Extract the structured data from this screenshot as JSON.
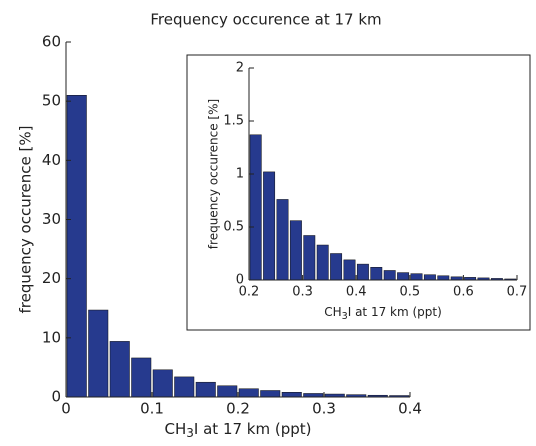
{
  "chart_data": [
    {
      "type": "histogram",
      "title": "Frequency occurence at 17 km",
      "xlabel": [
        "CH",
        "3",
        "I at 17 km (ppt)"
      ],
      "ylabel": "frequency occurence [%]",
      "bins": [
        0,
        0.025,
        0.05,
        0.075,
        0.1,
        0.125,
        0.15,
        0.175,
        0.2,
        0.225,
        0.25,
        0.275,
        0.3,
        0.325,
        0.35,
        0.375,
        0.4
      ],
      "values": [
        51,
        14.7,
        9.4,
        6.6,
        4.6,
        3.4,
        2.5,
        1.9,
        1.4,
        1.1,
        0.8,
        0.6,
        0.5,
        0.4,
        0.3,
        0.25
      ],
      "color": "#263a8e",
      "xlim": [
        0,
        0.4
      ],
      "ylim": [
        0,
        60
      ],
      "xticks": [
        0,
        0.1,
        0.2,
        0.3,
        0.4
      ],
      "yticks": [
        0,
        10,
        20,
        30,
        40,
        50,
        60
      ]
    },
    {
      "type": "histogram",
      "xlabel": [
        "CH",
        "3",
        "I at 17 km (ppt)"
      ],
      "ylabel": "frequency occurence [%]",
      "bins": [
        0.2,
        0.225,
        0.25,
        0.275,
        0.3,
        0.325,
        0.35,
        0.375,
        0.4,
        0.425,
        0.45,
        0.475,
        0.5,
        0.525,
        0.55,
        0.575,
        0.6,
        0.625,
        0.65,
        0.675,
        0.7
      ],
      "values": [
        1.37,
        1.02,
        0.76,
        0.56,
        0.42,
        0.33,
        0.25,
        0.19,
        0.15,
        0.12,
        0.09,
        0.07,
        0.06,
        0.05,
        0.04,
        0.03,
        0.025,
        0.02,
        0.015,
        0.01
      ],
      "color": "#263a8e",
      "xlim": [
        0.2,
        0.7
      ],
      "ylim": [
        0,
        2
      ],
      "xticks": [
        0.2,
        0.3,
        0.4,
        0.5,
        0.6,
        0.7
      ],
      "yticks": [
        0,
        0.5,
        1,
        1.5,
        2
      ]
    }
  ]
}
